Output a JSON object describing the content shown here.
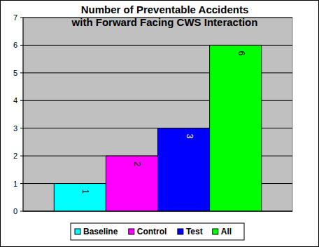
{
  "chart_data": {
    "type": "bar",
    "title": "Number of Preventable Accidents\nwith Forward Facing CWS Interaction",
    "categories": [
      null
    ],
    "series": [
      {
        "name": "Baseline",
        "color": "#00ffff",
        "values": [
          1
        ]
      },
      {
        "name": "Control",
        "color": "#ff00ff",
        "values": [
          2
        ]
      },
      {
        "name": "Test",
        "color": "#0000ff",
        "values": [
          3
        ]
      },
      {
        "name": "All",
        "color": "#00ff00",
        "values": [
          6
        ]
      }
    ],
    "ylim": [
      0,
      7
    ],
    "yticks": [
      0,
      1,
      2,
      3,
      4,
      5,
      6,
      7
    ],
    "grid": true,
    "legend": "bottom",
    "data_labels": true
  }
}
